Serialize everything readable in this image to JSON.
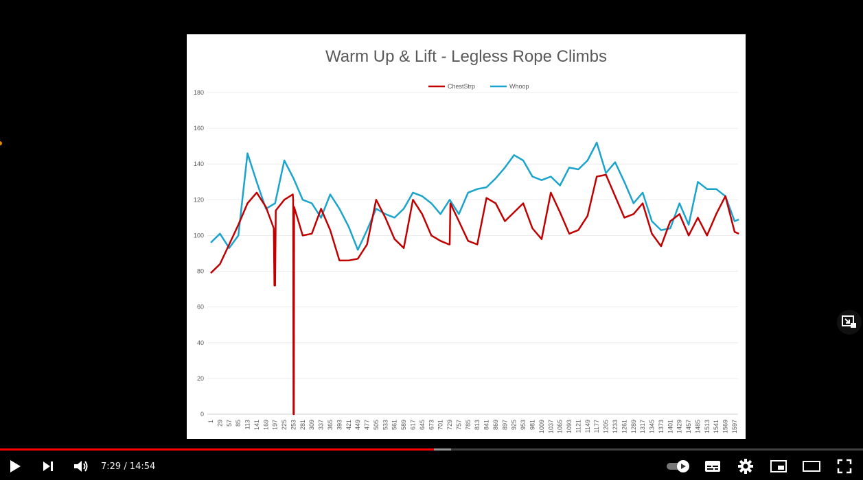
{
  "player": {
    "current_time": "7:29",
    "separator": " / ",
    "duration": "14:54",
    "progress_fraction": 0.5024,
    "buffered_fraction": 0.523,
    "colors": {
      "played": "#ff0000",
      "background": "#000000"
    }
  },
  "controls": {
    "icons": [
      "play-icon",
      "next-icon",
      "volume-icon",
      "autoplay-toggle-icon",
      "subtitles-icon",
      "settings-icon",
      "miniplayer-icon",
      "theater-mode-icon",
      "fullscreen-icon",
      "expand-icon"
    ]
  },
  "chart_data": {
    "type": "line",
    "title": "Warm Up & Lift - Legless Rope Climbs",
    "xlabel": "",
    "ylabel": "",
    "ylim": [
      0,
      180
    ],
    "yticks": [
      0,
      20,
      40,
      60,
      80,
      100,
      120,
      140,
      160,
      180
    ],
    "xlim": [
      1,
      1625
    ],
    "xticks": [
      1,
      29,
      57,
      85,
      113,
      141,
      169,
      197,
      225,
      253,
      281,
      309,
      337,
      365,
      393,
      421,
      449,
      477,
      505,
      533,
      561,
      589,
      617,
      645,
      673,
      701,
      729,
      757,
      785,
      813,
      841,
      869,
      897,
      925,
      953,
      981,
      1009,
      1037,
      1065,
      1093,
      1121,
      1149,
      1177,
      1205,
      1233,
      1261,
      1289,
      1317,
      1345,
      1373,
      1401,
      1429,
      1457,
      1485,
      1513,
      1541,
      1569,
      1597
    ],
    "grid": true,
    "legend_position": "top-center",
    "series": [
      {
        "name": "ChestStrp",
        "color": "#c00000",
        "x": [
          1,
          29,
          57,
          85,
          113,
          141,
          169,
          193,
          195,
          197,
          199,
          225,
          251,
          252,
          253,
          254,
          255,
          281,
          309,
          337,
          365,
          393,
          421,
          449,
          477,
          505,
          533,
          561,
          589,
          617,
          645,
          673,
          701,
          727,
          729,
          731,
          757,
          785,
          813,
          841,
          869,
          897,
          925,
          953,
          981,
          1009,
          1037,
          1065,
          1093,
          1121,
          1149,
          1177,
          1205,
          1233,
          1261,
          1289,
          1317,
          1345,
          1373,
          1401,
          1429,
          1457,
          1485,
          1513,
          1541,
          1569,
          1597,
          1610
        ],
        "values": [
          79,
          84,
          95,
          106,
          118,
          124,
          116,
          104,
          72,
          72,
          114,
          120,
          123,
          120,
          0,
          0,
          116,
          100,
          101,
          115,
          103,
          86,
          86,
          87,
          95,
          120,
          110,
          98,
          93,
          120,
          112,
          100,
          97,
          95,
          95,
          118,
          108,
          97,
          95,
          121,
          118,
          108,
          113,
          118,
          104,
          98,
          124,
          113,
          101,
          103,
          111,
          133,
          134,
          122,
          110,
          112,
          118,
          101,
          94,
          108,
          112,
          100,
          110,
          100,
          112,
          122,
          102,
          101
        ]
      },
      {
        "name": "Whoop",
        "color": "#1aa3cc",
        "x": [
          1,
          29,
          57,
          85,
          113,
          141,
          169,
          197,
          225,
          253,
          281,
          309,
          337,
          365,
          393,
          421,
          449,
          477,
          505,
          533,
          561,
          589,
          617,
          645,
          673,
          701,
          729,
          757,
          785,
          813,
          841,
          869,
          897,
          925,
          953,
          981,
          1009,
          1037,
          1065,
          1093,
          1121,
          1149,
          1177,
          1205,
          1233,
          1261,
          1289,
          1317,
          1345,
          1373,
          1401,
          1429,
          1457,
          1485,
          1513,
          1541,
          1569,
          1597,
          1610
        ],
        "values": [
          96,
          101,
          93,
          100,
          146,
          130,
          115,
          118,
          142,
          132,
          120,
          118,
          110,
          123,
          115,
          105,
          92,
          103,
          115,
          112,
          110,
          115,
          124,
          122,
          118,
          112,
          120,
          112,
          124,
          126,
          127,
          132,
          138,
          145,
          142,
          133,
          131,
          133,
          128,
          138,
          137,
          142,
          152,
          135,
          141,
          130,
          118,
          124,
          108,
          103,
          104,
          118,
          106,
          130,
          126,
          126,
          122,
          108,
          109
        ]
      }
    ]
  }
}
